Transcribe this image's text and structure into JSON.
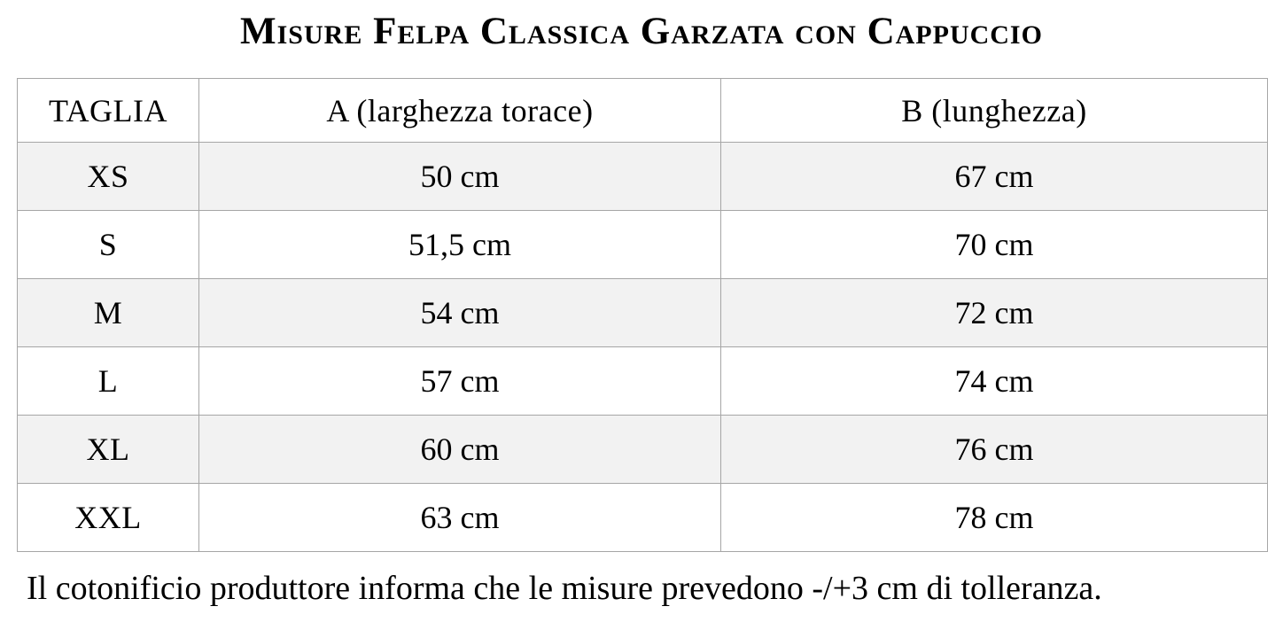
{
  "title": "Misure Felpa Classica Garzata con Cappuccio",
  "table": {
    "headers": [
      "TAGLIA",
      "A (larghezza torace)",
      "B (lunghezza)"
    ],
    "rows": [
      {
        "taglia": "XS",
        "a": "50 cm",
        "b": "67 cm"
      },
      {
        "taglia": "S",
        "a": "51,5 cm",
        "b": "70 cm"
      },
      {
        "taglia": "M",
        "a": "54 cm",
        "b": "72 cm"
      },
      {
        "taglia": "L",
        "a": "57 cm",
        "b": "74 cm"
      },
      {
        "taglia": "XL",
        "a": "60 cm",
        "b": "76 cm"
      },
      {
        "taglia": "XXL",
        "a": "63 cm",
        "b": "78 cm"
      }
    ]
  },
  "footer_note": "Il cotonificio produttore informa che le misure prevedono -/+3 cm di tolleranza.",
  "colors": {
    "row_stripe": "#f2f2f2",
    "border": "#a6a6a6",
    "text": "#000000",
    "background": "#ffffff"
  }
}
